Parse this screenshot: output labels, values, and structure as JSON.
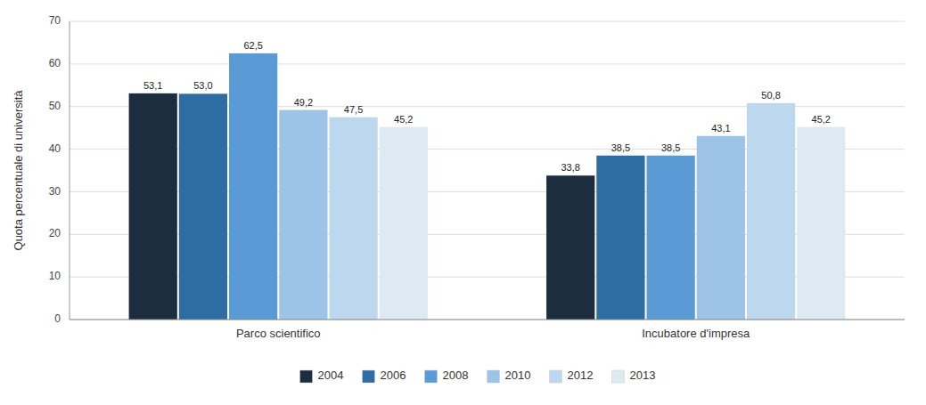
{
  "chart_data": {
    "type": "bar",
    "y_label": "Quota percentuale di università",
    "categories": [
      "Parco scientifico",
      "Incubatore d'impresa"
    ],
    "series": [
      {
        "name": "2004",
        "color": "#1c2d40",
        "values": [
          53.1,
          33.8
        ],
        "value_labels": [
          "53,1",
          "33,8"
        ]
      },
      {
        "name": "2006",
        "color": "#2e6da4",
        "values": [
          53.0,
          38.5
        ],
        "value_labels": [
          "53,0",
          "38,5"
        ]
      },
      {
        "name": "2008",
        "color": "#5b9bd5",
        "values": [
          62.5,
          38.5
        ],
        "value_labels": [
          "62,5",
          "38,5"
        ]
      },
      {
        "name": "2010",
        "color": "#9dc3e6",
        "values": [
          49.2,
          43.1
        ],
        "value_labels": [
          "49,2",
          "43,1"
        ]
      },
      {
        "name": "2012",
        "color": "#bdd7ee",
        "values": [
          47.5,
          50.8
        ],
        "value_labels": [
          "47,5",
          "50,8"
        ]
      },
      {
        "name": "2013",
        "color": "#deeaf1",
        "values": [
          45.2,
          45.2
        ],
        "value_labels": [
          "45,2",
          "45,2"
        ]
      }
    ],
    "ylim": [
      0,
      70
    ],
    "yticks": [
      0,
      10,
      20,
      30,
      40,
      50,
      60,
      70
    ],
    "grid": true,
    "legend": "bottom",
    "data_labels": true
  }
}
